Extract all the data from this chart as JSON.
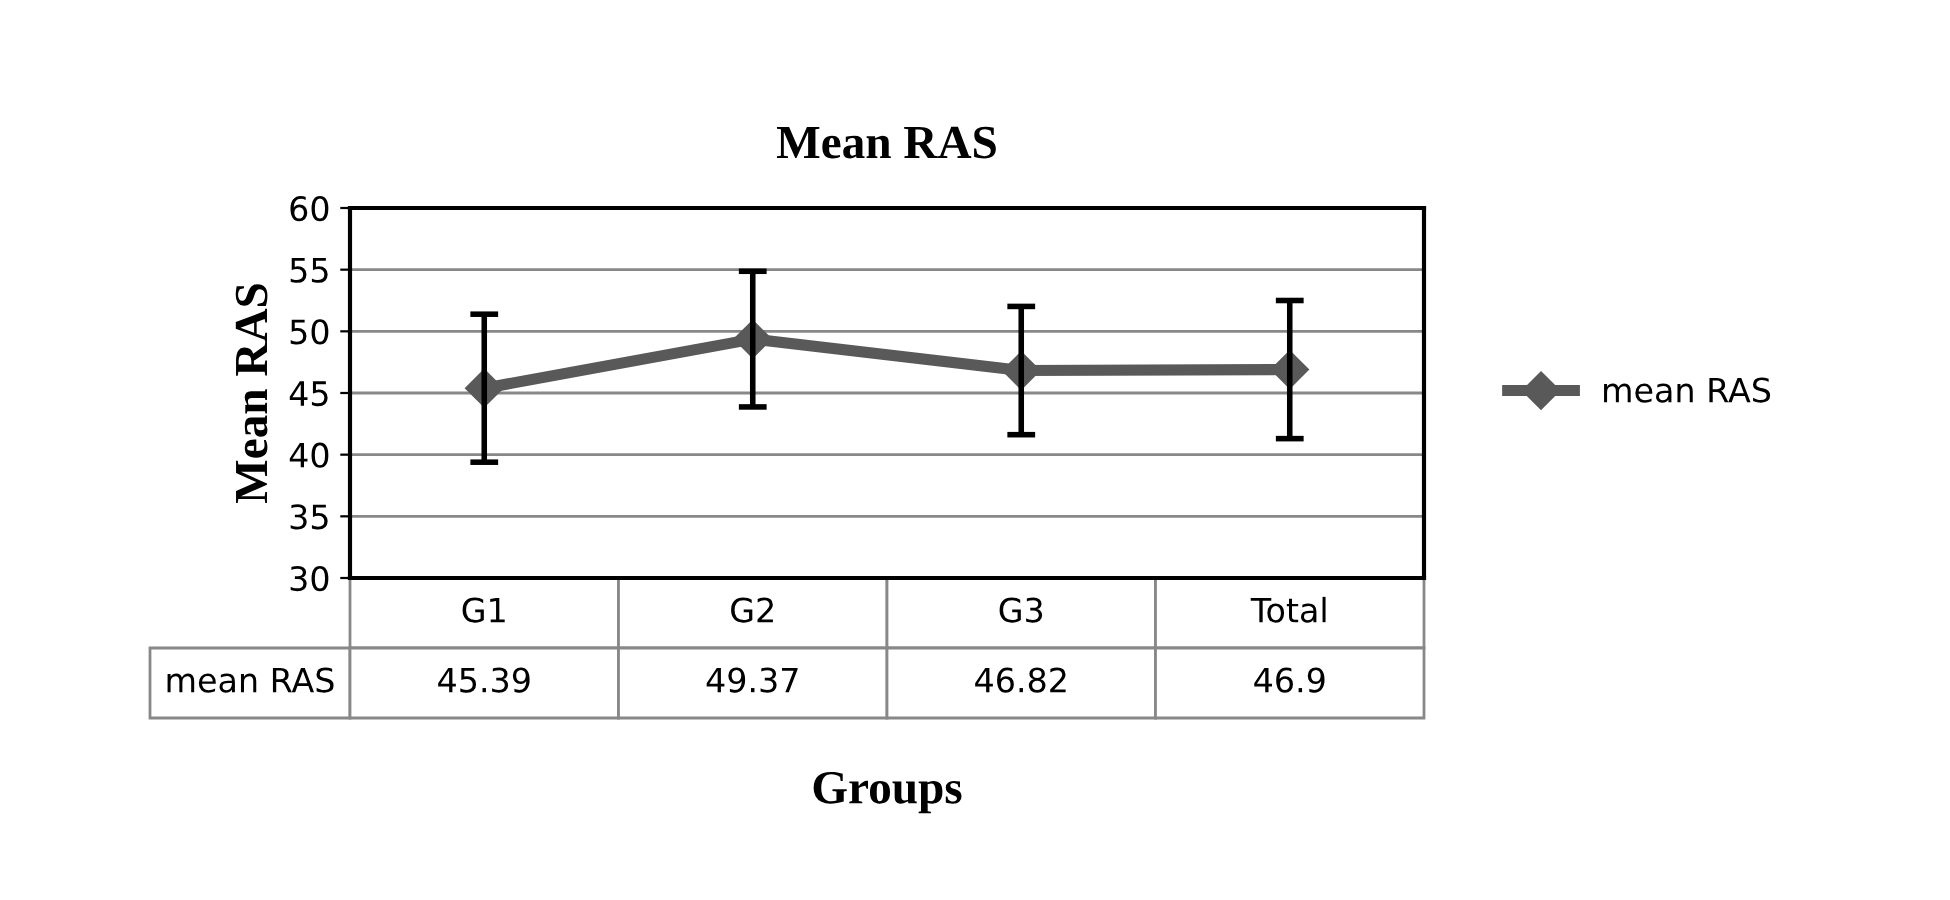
{
  "chart_data": {
    "type": "line",
    "title": "Mean RAS",
    "ylabel": "Mean RAS",
    "xlabel": "Groups",
    "categories": [
      "G1",
      "G2",
      "G3",
      "Total"
    ],
    "series": [
      {
        "name": "mean RAS",
        "color": "#595959",
        "values": [
          45.39,
          49.37,
          46.82,
          46.9
        ],
        "errors": [
          6.0,
          5.5,
          5.2,
          5.6
        ],
        "value_labels": [
          "45.39",
          "49.37",
          "46.82",
          "46.9"
        ]
      }
    ],
    "ylim": [
      30,
      60
    ],
    "yticks": [
      30,
      35,
      40,
      45,
      50,
      55,
      60
    ],
    "grid": "y",
    "legend": "right",
    "marker": "diamond",
    "line_style": "solid"
  }
}
